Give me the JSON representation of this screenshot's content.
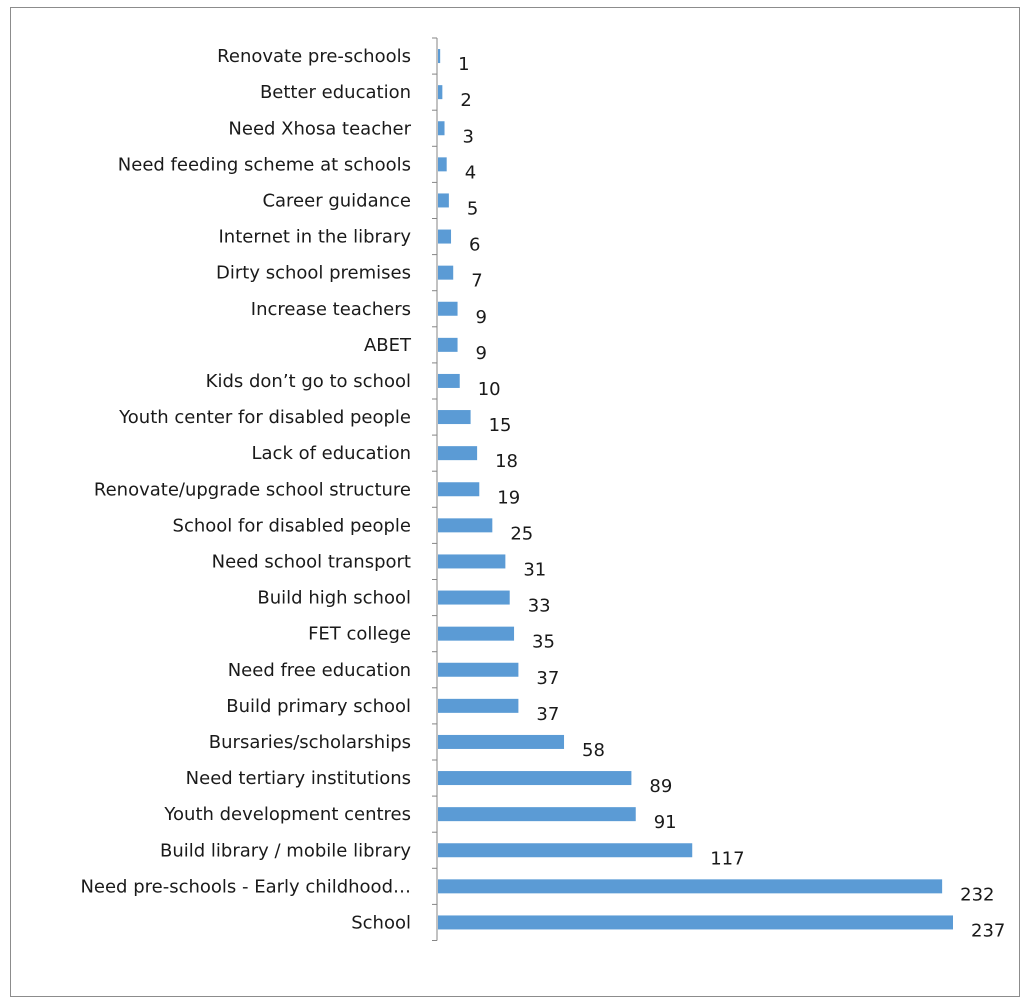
{
  "chart_data": {
    "type": "bar",
    "orientation": "horizontal",
    "title": "",
    "xlabel": "",
    "ylabel": "",
    "bar_color": "#5b9bd5",
    "axis_color": "#868686",
    "grid": false,
    "legend": "none",
    "xlim": [
      0,
      237
    ],
    "categories": [
      "Renovate pre-schools",
      "Better education",
      "Need Xhosa teacher",
      "Need feeding scheme at schools",
      "Career guidance",
      "Internet in the library",
      "Dirty school premises",
      "Increase teachers",
      "ABET",
      "Kids don’t go to school",
      "Youth center for disabled people",
      "Lack of education",
      "Renovate/upgrade school structure",
      "School for disabled people",
      "Need school transport",
      "Build high school",
      "FET college",
      "Need free education",
      "Build primary school",
      "Bursaries/scholarships",
      "Need tertiary institutions",
      "Youth development centres",
      "Build library / mobile library",
      "Need pre-schools - Early childhood…",
      "School"
    ],
    "values": [
      1,
      2,
      3,
      4,
      5,
      6,
      7,
      9,
      9,
      10,
      15,
      18,
      19,
      25,
      31,
      33,
      35,
      37,
      37,
      58,
      89,
      91,
      117,
      232,
      237
    ]
  }
}
